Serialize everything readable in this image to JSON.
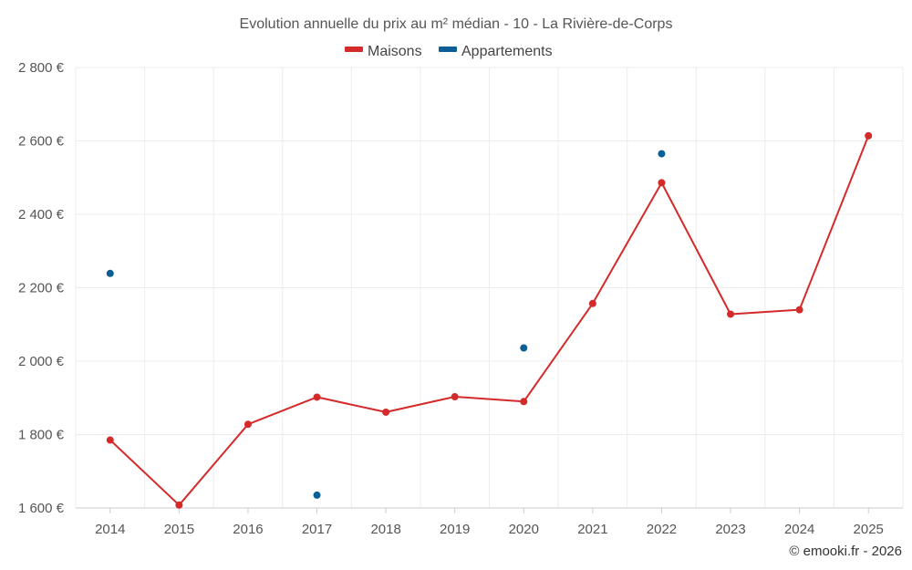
{
  "chart_data": {
    "type": "line",
    "title": "Evolution annuelle du prix au m² médian - 10 - La Rivière-de-Corps",
    "categories": [
      "2014",
      "2015",
      "2016",
      "2017",
      "2018",
      "2019",
      "2020",
      "2021",
      "2022",
      "2023",
      "2024",
      "2025"
    ],
    "y_tick_labels": [
      "1 600 €",
      "1 800 €",
      "2 000 €",
      "2 200 €",
      "2 400 €",
      "2 600 €",
      "2 800 €"
    ],
    "y_ticks": [
      1600,
      1800,
      2000,
      2200,
      2400,
      2600,
      2800
    ],
    "ylim": [
      1600,
      2800
    ],
    "grid": true,
    "legend_position": "top-center",
    "series": [
      {
        "name": "Maisons",
        "color": "#d42a2a",
        "line": true,
        "values": [
          1785,
          1608,
          1828,
          1902,
          1861,
          1903,
          1890,
          2157,
          2486,
          2128,
          2140,
          2614
        ]
      },
      {
        "name": "Appartements",
        "color": "#0b5f96",
        "line": false,
        "values": [
          2239,
          null,
          null,
          1635,
          null,
          null,
          2036,
          null,
          2565,
          null,
          null,
          null
        ]
      }
    ],
    "credit": "© emooki.fr - 2026"
  }
}
